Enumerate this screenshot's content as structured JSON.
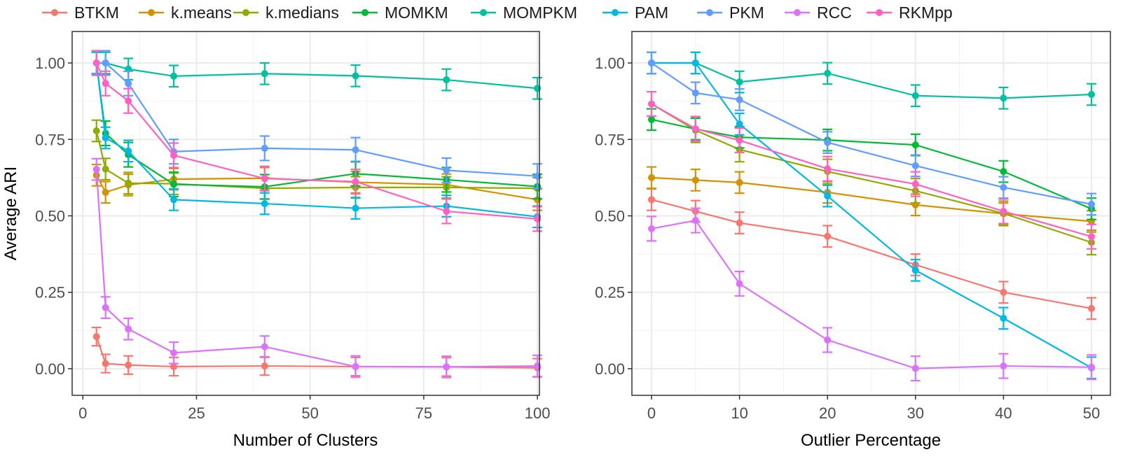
{
  "colors": {
    "BTKM": "#F8766D",
    "k.means": "#D39200",
    "k.medians": "#93AA00",
    "MOMKM": "#00BA38",
    "MOMPKM": "#00C19F",
    "PAM": "#00B9E3",
    "PKM": "#619CFF",
    "RCC": "#DB72FB",
    "RKMpp": "#FF61C3"
  },
  "legend": {
    "position": "top",
    "entries": [
      "BTKM",
      "k.means",
      "k.medians",
      "MOMKM",
      "MOMPKM",
      "PAM",
      "PKM",
      "RCC",
      "RKMpp"
    ]
  },
  "chart_data": [
    {
      "type": "line",
      "xlabel": "Number of Clusters",
      "ylabel": "Average ARI",
      "xlim": [
        -2.35,
        100.45
      ],
      "ylim": [
        -0.087,
        1.103
      ],
      "xticks": [
        0,
        25,
        50,
        75,
        100
      ],
      "yticks": [
        0,
        0.25,
        0.5,
        0.75,
        1
      ],
      "ytick_labels": [
        "0.00",
        "0.25",
        "0.50",
        "0.75",
        "1.00"
      ],
      "grid": true,
      "error_bars": true,
      "x": [
        3,
        5,
        10,
        20,
        40,
        60,
        80,
        100
      ],
      "series": [
        {
          "name": "BTKM",
          "values": [
            0.105,
            0.017,
            0.012,
            0.007,
            0.009,
            0.007,
            0.006,
            0.003
          ],
          "err": 0.03
        },
        {
          "name": "k.means",
          "values": [
            0.633,
            0.577,
            0.601,
            0.62,
            0.623,
            0.61,
            0.602,
            0.553
          ],
          "err": 0.035
        },
        {
          "name": "k.medians",
          "values": [
            0.778,
            0.653,
            0.607,
            0.605,
            0.59,
            0.593,
            0.593,
            0.59
          ],
          "err": 0.035
        },
        {
          "name": "MOMKM",
          "values": [
            1.0,
            0.77,
            0.7,
            0.603,
            0.595,
            0.638,
            0.618,
            0.596
          ],
          "err": 0.04
        },
        {
          "name": "MOMPKM",
          "values": [
            1.0,
            1.0,
            0.98,
            0.957,
            0.965,
            0.958,
            0.945,
            0.917
          ],
          "err": 0.035
        },
        {
          "name": "PAM",
          "values": [
            1.0,
            0.755,
            0.712,
            0.553,
            0.54,
            0.525,
            0.532,
            0.497
          ],
          "err": 0.035
        },
        {
          "name": "PKM",
          "values": [
            1.0,
            1.0,
            0.933,
            0.71,
            0.721,
            0.716,
            0.649,
            0.63
          ],
          "err": 0.04
        },
        {
          "name": "RCC",
          "values": [
            0.652,
            0.2,
            0.13,
            0.052,
            0.072,
            0.007,
            0.006,
            0.009
          ],
          "err": 0.035
        },
        {
          "name": "RKMpp",
          "values": [
            1.0,
            0.933,
            0.876,
            0.698,
            0.622,
            0.612,
            0.515,
            0.49
          ],
          "err": 0.04
        }
      ]
    },
    {
      "type": "line",
      "xlabel": "Outlier Percentage",
      "ylabel": "",
      "xlim": [
        -2.23,
        52.15
      ],
      "ylim": [
        -0.087,
        1.103
      ],
      "xticks": [
        0,
        10,
        20,
        30,
        40,
        50
      ],
      "yticks": [
        0,
        0.25,
        0.5,
        0.75,
        1
      ],
      "ytick_labels": [
        "0.00",
        "0.25",
        "0.50",
        "0.75",
        "1.00"
      ],
      "grid": true,
      "error_bars": true,
      "x": [
        0,
        5,
        10,
        20,
        30,
        40,
        50
      ],
      "series": [
        {
          "name": "BTKM",
          "values": [
            0.553,
            0.515,
            0.477,
            0.433,
            0.34,
            0.25,
            0.197
          ],
          "err": 0.035
        },
        {
          "name": "k.means",
          "values": [
            0.625,
            0.617,
            0.609,
            0.577,
            0.536,
            0.507,
            0.482
          ],
          "err": 0.035
        },
        {
          "name": "k.medians",
          "values": [
            0.866,
            0.78,
            0.717,
            0.645,
            0.582,
            0.508,
            0.413
          ],
          "err": 0.04
        },
        {
          "name": "MOMKM",
          "values": [
            0.815,
            0.784,
            0.757,
            0.748,
            0.732,
            0.645,
            0.523
          ],
          "err": 0.035
        },
        {
          "name": "MOMPKM",
          "values": [
            1.0,
            1.0,
            0.938,
            0.966,
            0.893,
            0.885,
            0.897
          ],
          "err": 0.035
        },
        {
          "name": "PAM",
          "values": [
            1.0,
            1.0,
            0.8,
            0.565,
            0.322,
            0.165,
            0.003
          ],
          "err": 0.035
        },
        {
          "name": "PKM",
          "values": [
            1.0,
            0.902,
            0.88,
            0.74,
            0.664,
            0.593,
            0.538
          ],
          "err": 0.035
        },
        {
          "name": "RCC",
          "values": [
            0.458,
            0.485,
            0.278,
            0.094,
            0.001,
            0.009,
            0.005
          ],
          "err": 0.04
        },
        {
          "name": "RKMpp",
          "values": [
            0.866,
            0.785,
            0.747,
            0.654,
            0.604,
            0.515,
            0.432
          ],
          "err": 0.04
        }
      ]
    }
  ]
}
